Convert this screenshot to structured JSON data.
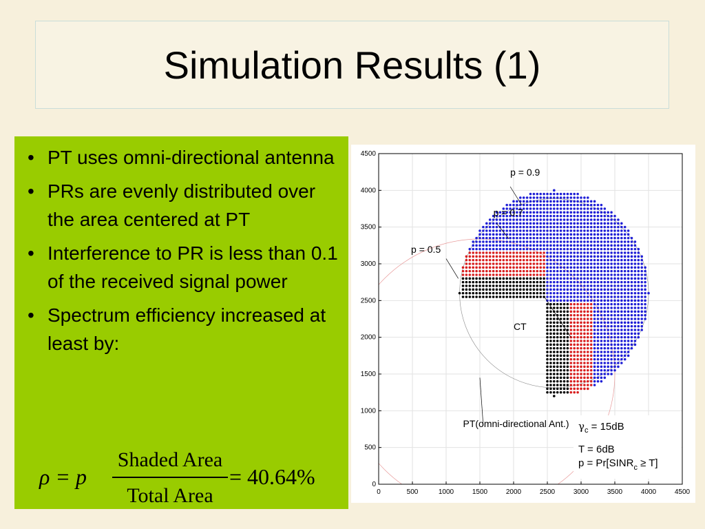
{
  "slide": {
    "title": "Simulation Results (1)",
    "bullets": [
      "PT uses omni-directional antenna",
      "PRs are evenly distributed over the area centered at PT",
      "Interference to PR is less than 0.1 of the received signal power",
      "Spectrum efficiency increased at least by:"
    ],
    "bullet_char": "•",
    "formula": {
      "lhs": "ρ = p",
      "numerator": "Shaded Area",
      "denominator": "Total Area",
      "rhs": "= 40.64%"
    },
    "colors": {
      "background": "#f7f0dc",
      "panel": "#99cc00",
      "blue_region": "#1f1fd6",
      "red_region": "#d81f1f",
      "black_region": "#000000"
    }
  },
  "chart_data": {
    "type": "scatter",
    "xlim": [
      0,
      4500
    ],
    "ylim": [
      0,
      4500
    ],
    "x_ticks": [
      0,
      500,
      1000,
      1500,
      2000,
      2500,
      3000,
      3500,
      4000,
      4500
    ],
    "y_ticks": [
      0,
      500,
      1000,
      1500,
      2000,
      2500,
      3000,
      3500,
      4000,
      4500
    ],
    "grid": true,
    "pt_center": [
      1500,
      1500
    ],
    "pt_radius": 2000,
    "ct_center": [
      2600,
      2600
    ],
    "ct_radius": 1400,
    "annotations": [
      {
        "text": "p = 0.9",
        "x": 1950,
        "y": 4200
      },
      {
        "text": "p = 0.7",
        "x": 1700,
        "y": 3650
      },
      {
        "text": "p = 0.5",
        "x": 480,
        "y": 3150
      },
      {
        "text": "CT",
        "x": 2000,
        "y": 2100
      },
      {
        "text": "PT(omni-directional Ant.)",
        "x": 1250,
        "y": 780
      }
    ],
    "legend": {
      "line1_sym": "γ",
      "line1_sub": "c",
      "line1_rest": " = 15dB",
      "line2": "T = 6dB",
      "line3_pre": "p = Pr[SINR",
      "line3_sub": "c",
      "line3_post": " ≥ T]"
    }
  }
}
